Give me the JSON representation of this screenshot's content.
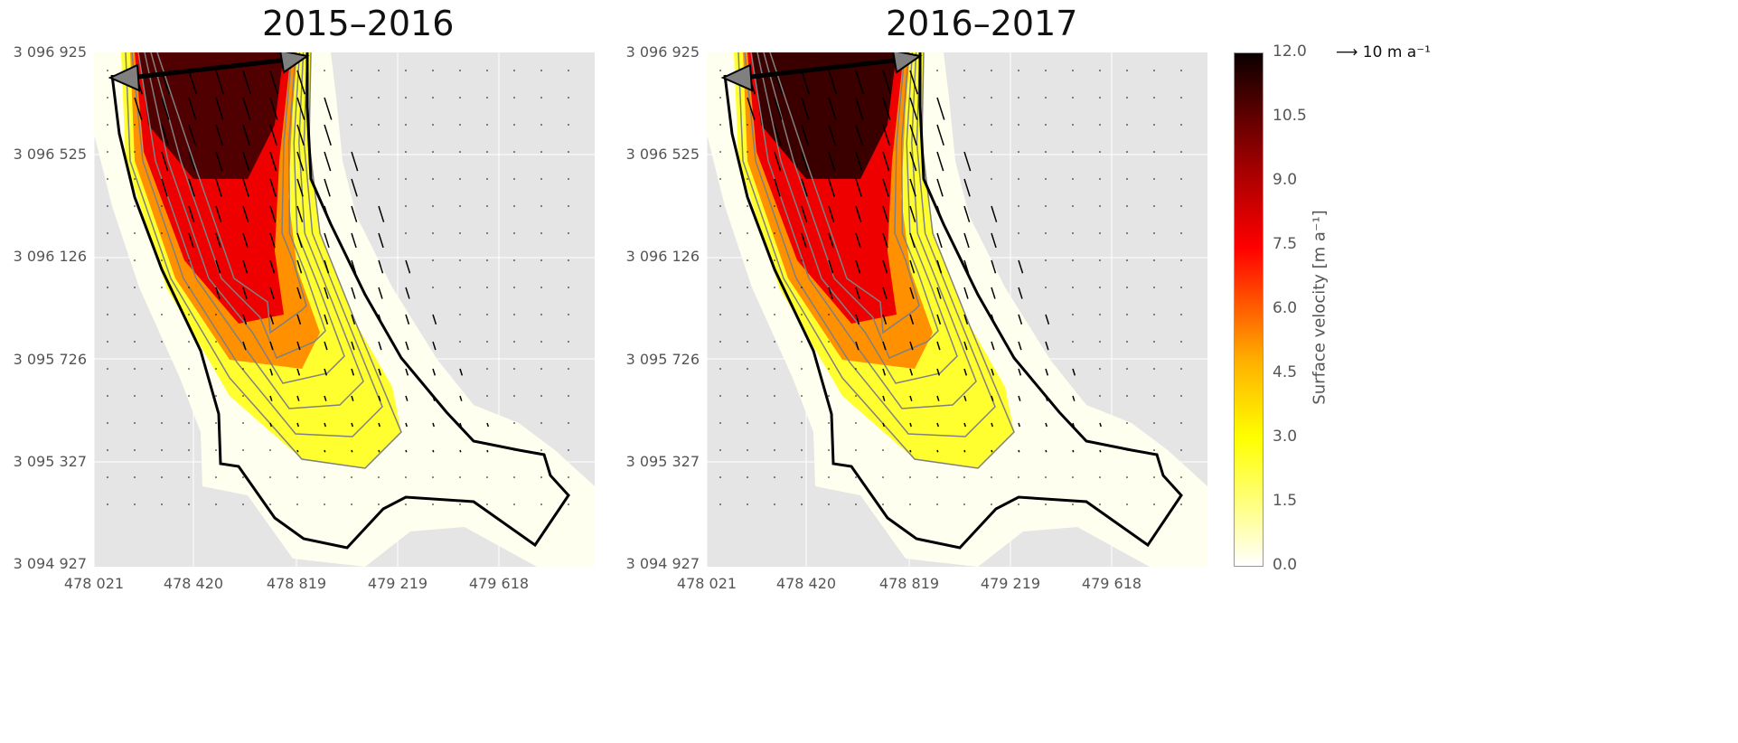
{
  "chart_data": {
    "type": "heatmap",
    "panels": [
      {
        "title": "2015–2016"
      },
      {
        "title": "2016–2017"
      }
    ],
    "x_ticks": [
      "478 021",
      "478 420",
      "478 819",
      "479 219",
      "479 618"
    ],
    "y_ticks": [
      "3 096 925",
      "3 096 525",
      "3 096 126",
      "3 095 726",
      "3 095 327",
      "3 094 927"
    ],
    "xlim": [
      478021,
      479900
    ],
    "ylim": [
      3094927,
      3096925
    ],
    "colorbar": {
      "label": "Surface velocity [m a⁻¹]",
      "ticks": [
        "12.0",
        "10.5",
        "9.0",
        "7.5",
        "6.0",
        "4.5",
        "3.0",
        "1.5",
        "0.0"
      ],
      "range": [
        0,
        12
      ],
      "colormap": "hot_r"
    },
    "quiver_key": "10 m a⁻¹",
    "contour_levels": [
      1,
      2,
      3,
      4,
      5,
      6,
      7,
      8,
      9,
      10,
      11
    ],
    "colors": {
      "background": "#e5e5e5",
      "contour": "#808080",
      "outline": "#000000",
      "arrow": "#808080"
    }
  }
}
